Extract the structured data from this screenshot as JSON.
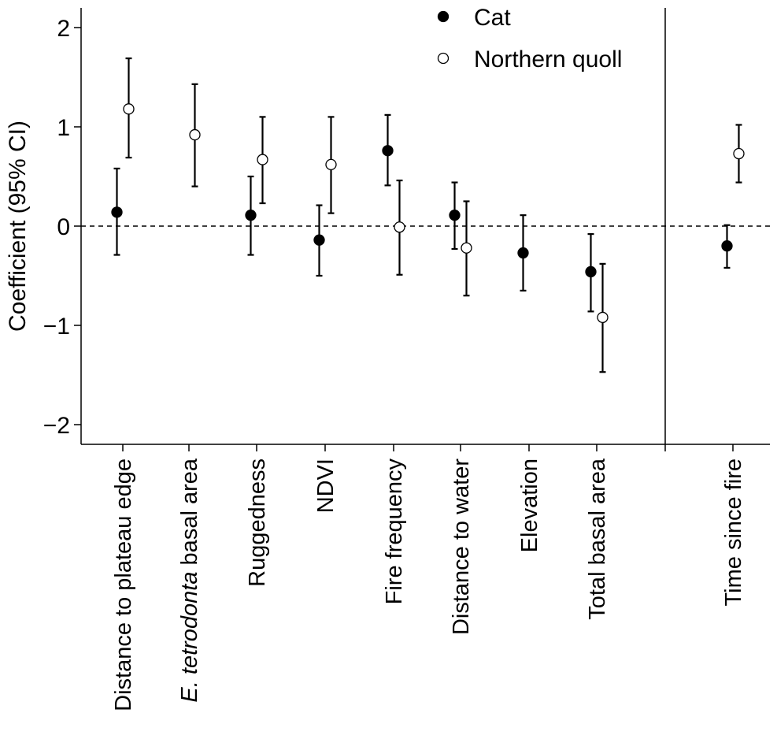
{
  "chart_data": {
    "type": "scatter",
    "ylabel": "Coefficient (95% CI)",
    "ylim": [
      -2.2,
      2.2
    ],
    "yticks": [
      -2,
      -1,
      0,
      1,
      2
    ],
    "ytick_labels": [
      "−2",
      "−1",
      "0",
      "1",
      "2"
    ],
    "reference_line": {
      "y": 0,
      "style": "dashed"
    },
    "legend": {
      "placement": "top-center"
    },
    "categories": [
      {
        "prefix": "Distance to plateau edge",
        "italic": "",
        "suffix": ""
      },
      {
        "prefix": "",
        "italic": "E. tetrodonta",
        "suffix": " basal area"
      },
      {
        "prefix": "Ruggedness",
        "italic": "",
        "suffix": ""
      },
      {
        "prefix": "NDVI",
        "italic": "",
        "suffix": ""
      },
      {
        "prefix": "Fire frequency",
        "italic": "",
        "suffix": ""
      },
      {
        "prefix": "Distance to water",
        "italic": "",
        "suffix": ""
      },
      {
        "prefix": "Elevation",
        "italic": "",
        "suffix": ""
      },
      {
        "prefix": "Total basal area",
        "italic": "",
        "suffix": ""
      },
      {
        "prefix": "Time since fire",
        "italic": "",
        "suffix": ""
      }
    ],
    "series": [
      {
        "name": "Cat",
        "marker": "filled",
        "color": "#000000",
        "points": [
          {
            "x": "Distance to plateau edge",
            "y": 0.14,
            "lower": -0.29,
            "upper": 0.58
          },
          {
            "x": "Ruggedness",
            "y": 0.11,
            "lower": -0.29,
            "upper": 0.5
          },
          {
            "x": "NDVI",
            "y": -0.14,
            "lower": -0.5,
            "upper": 0.21
          },
          {
            "x": "Fire frequency",
            "y": 0.76,
            "lower": 0.41,
            "upper": 1.12
          },
          {
            "x": "Distance to water",
            "y": 0.11,
            "lower": -0.23,
            "upper": 0.44
          },
          {
            "x": "Elevation",
            "y": -0.27,
            "lower": -0.65,
            "upper": 0.11
          },
          {
            "x": "Total basal area",
            "y": -0.46,
            "lower": -0.86,
            "upper": -0.08
          },
          {
            "x": "Time since fire",
            "y": -0.2,
            "lower": -0.42,
            "upper": 0.01
          }
        ]
      },
      {
        "name": "Northern quoll",
        "marker": "open",
        "color": "#000000",
        "points": [
          {
            "x": "Distance to plateau edge",
            "y": 1.18,
            "lower": 0.69,
            "upper": 1.69
          },
          {
            "x": "E. tetrodonta basal area",
            "y": 0.92,
            "lower": 0.4,
            "upper": 1.43
          },
          {
            "x": "Ruggedness",
            "y": 0.67,
            "lower": 0.23,
            "upper": 1.1
          },
          {
            "x": "NDVI",
            "y": 0.62,
            "lower": 0.13,
            "upper": 1.1
          },
          {
            "x": "Fire frequency",
            "y": -0.01,
            "lower": -0.49,
            "upper": 0.46
          },
          {
            "x": "Distance to water",
            "y": -0.22,
            "lower": -0.7,
            "upper": 0.25
          },
          {
            "x": "Total basal area",
            "y": -0.92,
            "lower": -1.47,
            "upper": -0.38
          },
          {
            "x": "Time since fire",
            "y": 0.73,
            "lower": 0.44,
            "upper": 1.02
          }
        ]
      }
    ]
  }
}
